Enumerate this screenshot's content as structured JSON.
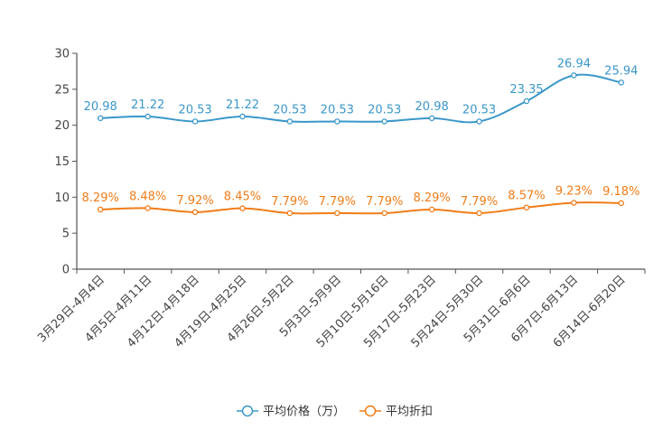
{
  "chart_data": {
    "type": "line",
    "title": "",
    "xlabel": "",
    "ylabel": "",
    "ylim": [
      0,
      30
    ],
    "yticks": [
      "0",
      "5",
      "10",
      "15",
      "20",
      "25",
      "30"
    ],
    "grid": false,
    "legend_position": "bottom-center",
    "categories": [
      "3月29日-4月4日",
      "4月5日-4月11日",
      "4月12日-4月18日",
      "4月19日-4月25日",
      "4月26日-5月2日",
      "5月3日-5月9日",
      "5月10日-5月16日",
      "5月17日-5月23日",
      "5月24日-5月30日",
      "5月31日-6月6日",
      "6月7日-6月13日",
      "6月14日-6月20日"
    ],
    "series": [
      {
        "name": "平均价格（万）",
        "color": "#3a97c9",
        "values": [
          20.98,
          21.22,
          20.53,
          21.22,
          20.53,
          20.53,
          20.53,
          20.98,
          20.53,
          23.35,
          26.94,
          25.94
        ],
        "labels": [
          "20.98",
          "21.22",
          "20.53",
          "21.22",
          "20.53",
          "20.53",
          "20.53",
          "20.98",
          "20.53",
          "23.35",
          "26.94",
          "25.94"
        ]
      },
      {
        "name": "平均折扣",
        "color": "#f07c18",
        "values": [
          8.29,
          8.48,
          7.92,
          8.45,
          7.79,
          7.79,
          7.79,
          8.29,
          7.79,
          8.57,
          9.23,
          9.18
        ],
        "labels": [
          "8.29%",
          "8.48%",
          "7.92%",
          "8.45%",
          "7.79%",
          "7.79%",
          "7.79%",
          "8.29%",
          "7.79%",
          "8.57%",
          "9.23%",
          "9.18%"
        ]
      }
    ]
  }
}
